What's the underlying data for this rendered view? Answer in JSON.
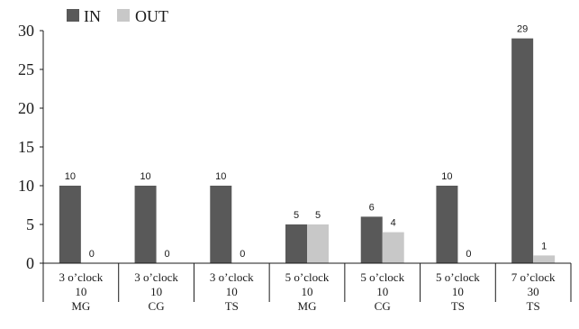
{
  "chart_data": {
    "type": "bar",
    "title": "",
    "xlabel": "",
    "ylabel": "",
    "ylim": [
      0,
      30
    ],
    "yticks": [
      0,
      5,
      10,
      15,
      20,
      25,
      30
    ],
    "yticks_text": [
      "0",
      "5",
      "10",
      "15",
      "20",
      "25",
      "30"
    ],
    "grid": false,
    "legend_position": "top-left",
    "categories": [
      [
        "3 o’clock",
        "10",
        "MG"
      ],
      [
        "3 o’clock",
        "10",
        "CG"
      ],
      [
        "3 o’clock",
        "10",
        "TS"
      ],
      [
        "5 o’clock",
        "10",
        "MG"
      ],
      [
        "5 o’clock",
        "10",
        "CG"
      ],
      [
        "5 o’clock",
        "10",
        "TS"
      ],
      [
        "7 o’clock",
        "30",
        "TS"
      ]
    ],
    "series": [
      {
        "name": "IN",
        "color": "#595959",
        "values": [
          10,
          10,
          10,
          5,
          6,
          10,
          29
        ],
        "labels": [
          "10",
          "10",
          "10",
          "5",
          "6",
          "10",
          "29"
        ]
      },
      {
        "name": "OUT",
        "color": "#c8c8c8",
        "values": [
          0,
          0,
          0,
          5,
          4,
          0,
          1
        ],
        "labels": [
          "0",
          "0",
          "0",
          "5",
          "4",
          "0",
          "1"
        ]
      }
    ]
  }
}
